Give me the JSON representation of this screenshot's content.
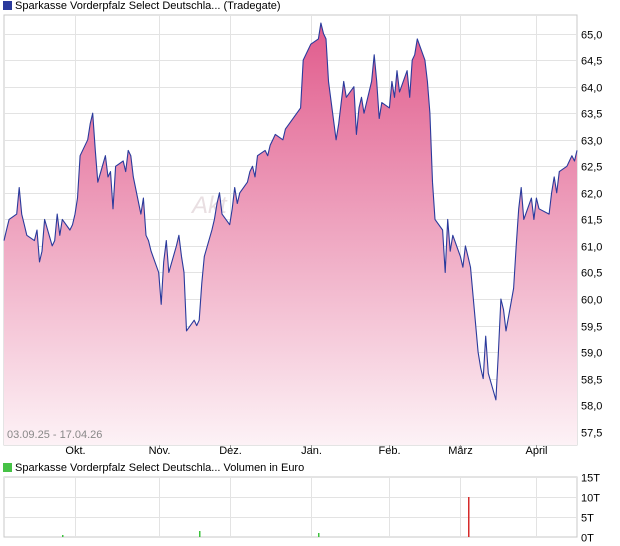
{
  "chart_data": [
    {
      "type": "area",
      "legend": "Sparkasse Vorderpfalz Select Deutschla... (Tradegate)",
      "legend_color": "#2a3a9c",
      "line_color": "#2a3a9c",
      "fill_top_color": "#e0588a",
      "fill_bottom_color": "#fdf2f6",
      "date_range_label": "03.09.25 - 17.04.26",
      "watermark": "Akt",
      "x_tick_labels": [
        "Okt.",
        "Nov.",
        "Dez.",
        "Jan.",
        "Feb.",
        "März",
        "April"
      ],
      "x_tick_dates": [
        "2025-10-01",
        "2025-11-03",
        "2025-12-01",
        "2026-01-02",
        "2026-02-02",
        "2026-03-02",
        "2026-04-01"
      ],
      "y_tick_labels": [
        "57,5",
        "58,0",
        "58,5",
        "59,0",
        "59,5",
        "60,0",
        "60,5",
        "61,0",
        "61,5",
        "62,0",
        "62,5",
        "63,0",
        "63,5",
        "64,0",
        "64,5",
        "65,0"
      ],
      "ylim": [
        57.25,
        65.35
      ],
      "xlim": [
        "2025-09-03",
        "2026-04-17"
      ],
      "grid": true,
      "series": [
        {
          "points": [
            [
              "2025-09-03",
              61.1
            ],
            [
              "2025-09-04",
              61.3
            ],
            [
              "2025-09-05",
              61.5
            ],
            [
              "2025-09-08",
              61.6
            ],
            [
              "2025-09-09",
              62.1
            ],
            [
              "2025-09-10",
              61.6
            ],
            [
              "2025-09-11",
              61.4
            ],
            [
              "2025-09-12",
              61.2
            ],
            [
              "2025-09-15",
              61.1
            ],
            [
              "2025-09-16",
              61.3
            ],
            [
              "2025-09-17",
              60.7
            ],
            [
              "2025-09-18",
              60.9
            ],
            [
              "2025-09-19",
              61.5
            ],
            [
              "2025-09-22",
              61.0
            ],
            [
              "2025-09-23",
              61.1
            ],
            [
              "2025-09-24",
              61.6
            ],
            [
              "2025-09-25",
              61.2
            ],
            [
              "2025-09-26",
              61.5
            ],
            [
              "2025-09-29",
              61.3
            ],
            [
              "2025-09-30",
              61.4
            ],
            [
              "2025-10-01",
              61.6
            ],
            [
              "2025-10-02",
              61.9
            ],
            [
              "2025-10-03",
              62.7
            ],
            [
              "2025-10-06",
              63.0
            ],
            [
              "2025-10-07",
              63.3
            ],
            [
              "2025-10-08",
              63.5
            ],
            [
              "2025-10-09",
              62.8
            ],
            [
              "2025-10-10",
              62.2
            ],
            [
              "2025-10-13",
              62.7
            ],
            [
              "2025-10-14",
              62.3
            ],
            [
              "2025-10-15",
              62.4
            ],
            [
              "2025-10-16",
              61.7
            ],
            [
              "2025-10-17",
              62.5
            ],
            [
              "2025-10-20",
              62.6
            ],
            [
              "2025-10-21",
              62.4
            ],
            [
              "2025-10-22",
              62.8
            ],
            [
              "2025-10-23",
              62.7
            ],
            [
              "2025-10-24",
              62.3
            ],
            [
              "2025-10-27",
              61.6
            ],
            [
              "2025-10-28",
              61.9
            ],
            [
              "2025-10-29",
              61.2
            ],
            [
              "2025-10-30",
              61.1
            ],
            [
              "2025-10-31",
              60.9
            ],
            [
              "2025-11-03",
              60.5
            ],
            [
              "2025-11-04",
              59.9
            ],
            [
              "2025-11-05",
              60.7
            ],
            [
              "2025-11-06",
              61.1
            ],
            [
              "2025-11-07",
              60.5
            ],
            [
              "2025-11-10",
              61.0
            ],
            [
              "2025-11-11",
              61.2
            ],
            [
              "2025-11-12",
              60.8
            ],
            [
              "2025-11-13",
              60.5
            ],
            [
              "2025-11-14",
              59.4
            ],
            [
              "2025-11-17",
              59.6
            ],
            [
              "2025-11-18",
              59.5
            ],
            [
              "2025-11-19",
              59.6
            ],
            [
              "2025-11-20",
              60.3
            ],
            [
              "2025-11-21",
              60.8
            ],
            [
              "2025-11-24",
              61.3
            ],
            [
              "2025-11-25",
              61.5
            ],
            [
              "2025-11-26",
              61.8
            ],
            [
              "2025-11-27",
              62.0
            ],
            [
              "2025-11-28",
              61.6
            ],
            [
              "2025-12-01",
              61.4
            ],
            [
              "2025-12-02",
              61.7
            ],
            [
              "2025-12-03",
              62.1
            ],
            [
              "2025-12-04",
              61.8
            ],
            [
              "2025-12-05",
              62.0
            ],
            [
              "2025-12-08",
              62.2
            ],
            [
              "2025-12-09",
              62.4
            ],
            [
              "2025-12-10",
              62.5
            ],
            [
              "2025-12-11",
              62.3
            ],
            [
              "2025-12-12",
              62.7
            ],
            [
              "2025-12-15",
              62.8
            ],
            [
              "2025-12-16",
              62.7
            ],
            [
              "2025-12-17",
              62.9
            ],
            [
              "2025-12-18",
              63.0
            ],
            [
              "2025-12-19",
              63.1
            ],
            [
              "2025-12-22",
              63.0
            ],
            [
              "2025-12-23",
              63.2
            ],
            [
              "2025-12-29",
              63.6
            ],
            [
              "2025-12-30",
              64.5
            ],
            [
              "2026-01-02",
              64.8
            ],
            [
              "2026-01-05",
              64.9
            ],
            [
              "2026-01-06",
              65.2
            ],
            [
              "2026-01-07",
              65.0
            ],
            [
              "2026-01-08",
              64.9
            ],
            [
              "2026-01-09",
              64.1
            ],
            [
              "2026-01-12",
              63.0
            ],
            [
              "2026-01-13",
              63.3
            ],
            [
              "2026-01-14",
              63.7
            ],
            [
              "2026-01-15",
              64.1
            ],
            [
              "2026-01-16",
              63.8
            ],
            [
              "2026-01-19",
              64.0
            ],
            [
              "2026-01-20",
              63.1
            ],
            [
              "2026-01-21",
              63.6
            ],
            [
              "2026-01-22",
              63.8
            ],
            [
              "2026-01-23",
              63.5
            ],
            [
              "2026-01-26",
              64.1
            ],
            [
              "2026-01-27",
              64.6
            ],
            [
              "2026-01-28",
              64.1
            ],
            [
              "2026-01-29",
              63.4
            ],
            [
              "2026-01-30",
              63.7
            ],
            [
              "2026-02-02",
              63.6
            ],
            [
              "2026-02-03",
              64.1
            ],
            [
              "2026-02-04",
              63.8
            ],
            [
              "2026-02-05",
              64.3
            ],
            [
              "2026-02-06",
              63.9
            ],
            [
              "2026-02-09",
              64.3
            ],
            [
              "2026-02-10",
              63.8
            ],
            [
              "2026-02-11",
              64.5
            ],
            [
              "2026-02-12",
              64.6
            ],
            [
              "2026-02-13",
              64.9
            ],
            [
              "2026-02-16",
              64.5
            ],
            [
              "2026-02-17",
              64.1
            ],
            [
              "2026-02-18",
              63.5
            ],
            [
              "2026-02-19",
              62.2
            ],
            [
              "2026-02-20",
              61.5
            ],
            [
              "2026-02-23",
              61.3
            ],
            [
              "2026-02-24",
              60.5
            ],
            [
              "2026-02-25",
              61.5
            ],
            [
              "2026-02-26",
              60.9
            ],
            [
              "2026-02-27",
              61.2
            ],
            [
              "2026-03-02",
              60.8
            ],
            [
              "2026-03-03",
              60.6
            ],
            [
              "2026-03-04",
              61.0
            ],
            [
              "2026-03-05",
              60.8
            ],
            [
              "2026-03-06",
              60.6
            ],
            [
              "2026-03-09",
              59.0
            ],
            [
              "2026-03-10",
              58.7
            ],
            [
              "2026-03-11",
              58.5
            ],
            [
              "2026-03-12",
              59.3
            ],
            [
              "2026-03-13",
              58.6
            ],
            [
              "2026-03-16",
              58.1
            ],
            [
              "2026-03-17",
              59.0
            ],
            [
              "2026-03-18",
              60.0
            ],
            [
              "2026-03-19",
              59.8
            ],
            [
              "2026-03-20",
              59.4
            ],
            [
              "2026-03-23",
              60.2
            ],
            [
              "2026-03-24",
              61.0
            ],
            [
              "2026-03-25",
              61.7
            ],
            [
              "2026-03-26",
              62.1
            ],
            [
              "2026-03-27",
              61.5
            ],
            [
              "2026-03-30",
              61.9
            ],
            [
              "2026-03-31",
              61.5
            ],
            [
              "2026-04-01",
              61.9
            ],
            [
              "2026-04-02",
              61.7
            ],
            [
              "2026-04-06",
              61.6
            ],
            [
              "2026-04-07",
              62.0
            ],
            [
              "2026-04-08",
              62.3
            ],
            [
              "2026-04-09",
              62.0
            ],
            [
              "2026-04-10",
              62.4
            ],
            [
              "2026-04-13",
              62.5
            ],
            [
              "2026-04-14",
              62.6
            ],
            [
              "2026-04-15",
              62.7
            ],
            [
              "2026-04-16",
              62.6
            ],
            [
              "2026-04-17",
              62.8
            ]
          ]
        }
      ]
    },
    {
      "type": "bar",
      "legend": "Sparkasse Vorderpfalz Select Deutschla... Volumen in Euro",
      "legend_color": "#46c246",
      "y_tick_labels": [
        "0T",
        "5T",
        "10T",
        "15T"
      ],
      "ylim": [
        0,
        15
      ],
      "y_unit": "T",
      "grid": true,
      "bars": [
        {
          "date": "2025-09-26",
          "value": 0.5,
          "color": "#3cc33c"
        },
        {
          "date": "2025-11-19",
          "value": 1.5,
          "color": "#3cc33c"
        },
        {
          "date": "2026-01-05",
          "value": 1.0,
          "color": "#3cc33c"
        },
        {
          "date": "2026-03-05",
          "value": 10.0,
          "color": "#d62a2a"
        }
      ]
    }
  ]
}
